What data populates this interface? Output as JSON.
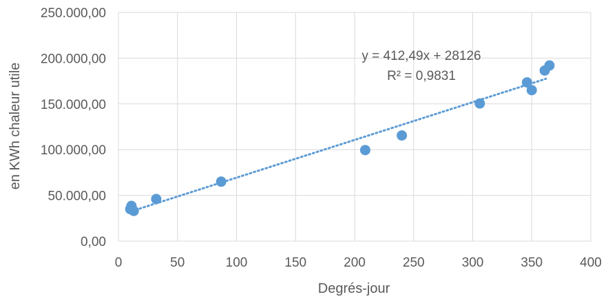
{
  "chart_data": {
    "type": "scatter",
    "title": "",
    "xlabel": "Degrés-jour",
    "ylabel": "en KWh chaleur utile",
    "xlim": [
      0,
      400
    ],
    "ylim": [
      0,
      250000
    ],
    "x_ticks": [
      0,
      50,
      100,
      150,
      200,
      250,
      300,
      350,
      400
    ],
    "x_tick_labels": [
      "0",
      "50",
      "100",
      "150",
      "200",
      "250",
      "300",
      "350",
      "400"
    ],
    "y_ticks": [
      0,
      50000,
      100000,
      150000,
      200000,
      250000
    ],
    "y_tick_labels": [
      "0,00",
      "50.000,00",
      "100.000,00",
      "150.000,00",
      "200.000,00",
      "250.000,00"
    ],
    "grid": true,
    "point_color": "#5b9bd5",
    "trendline_color": "#5b9bd5",
    "series": [
      {
        "x": [
          10,
          11,
          12,
          13,
          32,
          87,
          209,
          240,
          306,
          346,
          350,
          361,
          365
        ],
        "y": [
          35000,
          38500,
          34500,
          33000,
          46000,
          65000,
          99500,
          115500,
          150500,
          173500,
          165000,
          186500,
          192000
        ]
      }
    ],
    "trendline": {
      "type": "linear",
      "slope": 412.49,
      "intercept": 28126,
      "x_range": [
        8,
        362
      ],
      "equation": "y = 412,49x + 28126",
      "r_squared": "R² = 0,9831"
    }
  }
}
